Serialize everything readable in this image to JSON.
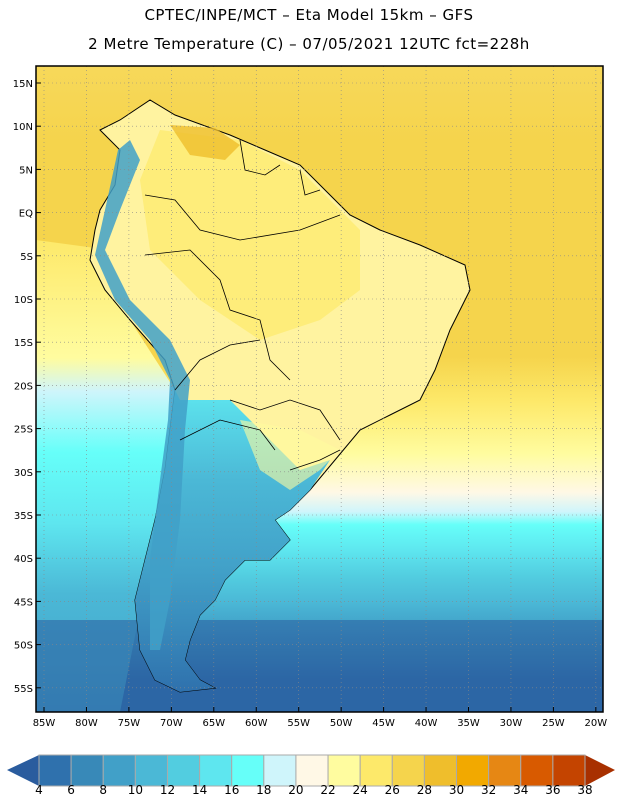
{
  "header": {
    "title_line1": "CPTEC/INPE/MCT –  Eta Model 15km – GFS",
    "title_line2": "2 Metre Temperature (C) – 07/05/2021 12UTC fct=228h"
  },
  "map": {
    "variable": "2 Metre Temperature",
    "units": "C",
    "lon_range": [
      -86,
      -19
    ],
    "lat_range": [
      -58,
      17
    ],
    "lat_labels": [
      {
        "lat": 15,
        "label": "15N"
      },
      {
        "lat": 10,
        "label": "10N"
      },
      {
        "lat": 5,
        "label": "5N"
      },
      {
        "lat": 0,
        "label": "EQ"
      },
      {
        "lat": -5,
        "label": "5S"
      },
      {
        "lat": -10,
        "label": "10S"
      },
      {
        "lat": -15,
        "label": "15S"
      },
      {
        "lat": -20,
        "label": "20S"
      },
      {
        "lat": -25,
        "label": "25S"
      },
      {
        "lat": -30,
        "label": "30S"
      },
      {
        "lat": -35,
        "label": "35S"
      },
      {
        "lat": -40,
        "label": "40S"
      },
      {
        "lat": -45,
        "label": "45S"
      },
      {
        "lat": -50,
        "label": "50S"
      },
      {
        "lat": -55,
        "label": "55S"
      }
    ],
    "lon_labels": [
      {
        "lon": -85,
        "label": "85W"
      },
      {
        "lon": -80,
        "label": "80W"
      },
      {
        "lon": -75,
        "label": "75W"
      },
      {
        "lon": -70,
        "label": "70W"
      },
      {
        "lon": -65,
        "label": "65W"
      },
      {
        "lon": -60,
        "label": "60W"
      },
      {
        "lon": -55,
        "label": "55W"
      },
      {
        "lon": -50,
        "label": "50W"
      },
      {
        "lon": -45,
        "label": "45W"
      },
      {
        "lon": -40,
        "label": "40W"
      },
      {
        "lon": -35,
        "label": "35W"
      },
      {
        "lon": -30,
        "label": "30W"
      },
      {
        "lon": -25,
        "label": "25W"
      },
      {
        "lon": -20,
        "label": "20W"
      }
    ]
  },
  "colorbar": {
    "labels": [
      "4",
      "6",
      "8",
      "10",
      "12",
      "14",
      "16",
      "18",
      "20",
      "22",
      "24",
      "26",
      "28",
      "30",
      "32",
      "34",
      "36",
      "38"
    ],
    "below_color": "#2a5c9e",
    "above_color": "#a83000",
    "colors": [
      "#2f71ad",
      "#3889b8",
      "#41a0c8",
      "#4bb8d6",
      "#52cde0",
      "#5ee6ef",
      "#66fff9",
      "#cff5fb",
      "#fff8e6",
      "#fffc9f",
      "#fde96a",
      "#f5d44c",
      "#efbe2c",
      "#f2a900",
      "#e68714",
      "#d85a00",
      "#c44400"
    ]
  }
}
